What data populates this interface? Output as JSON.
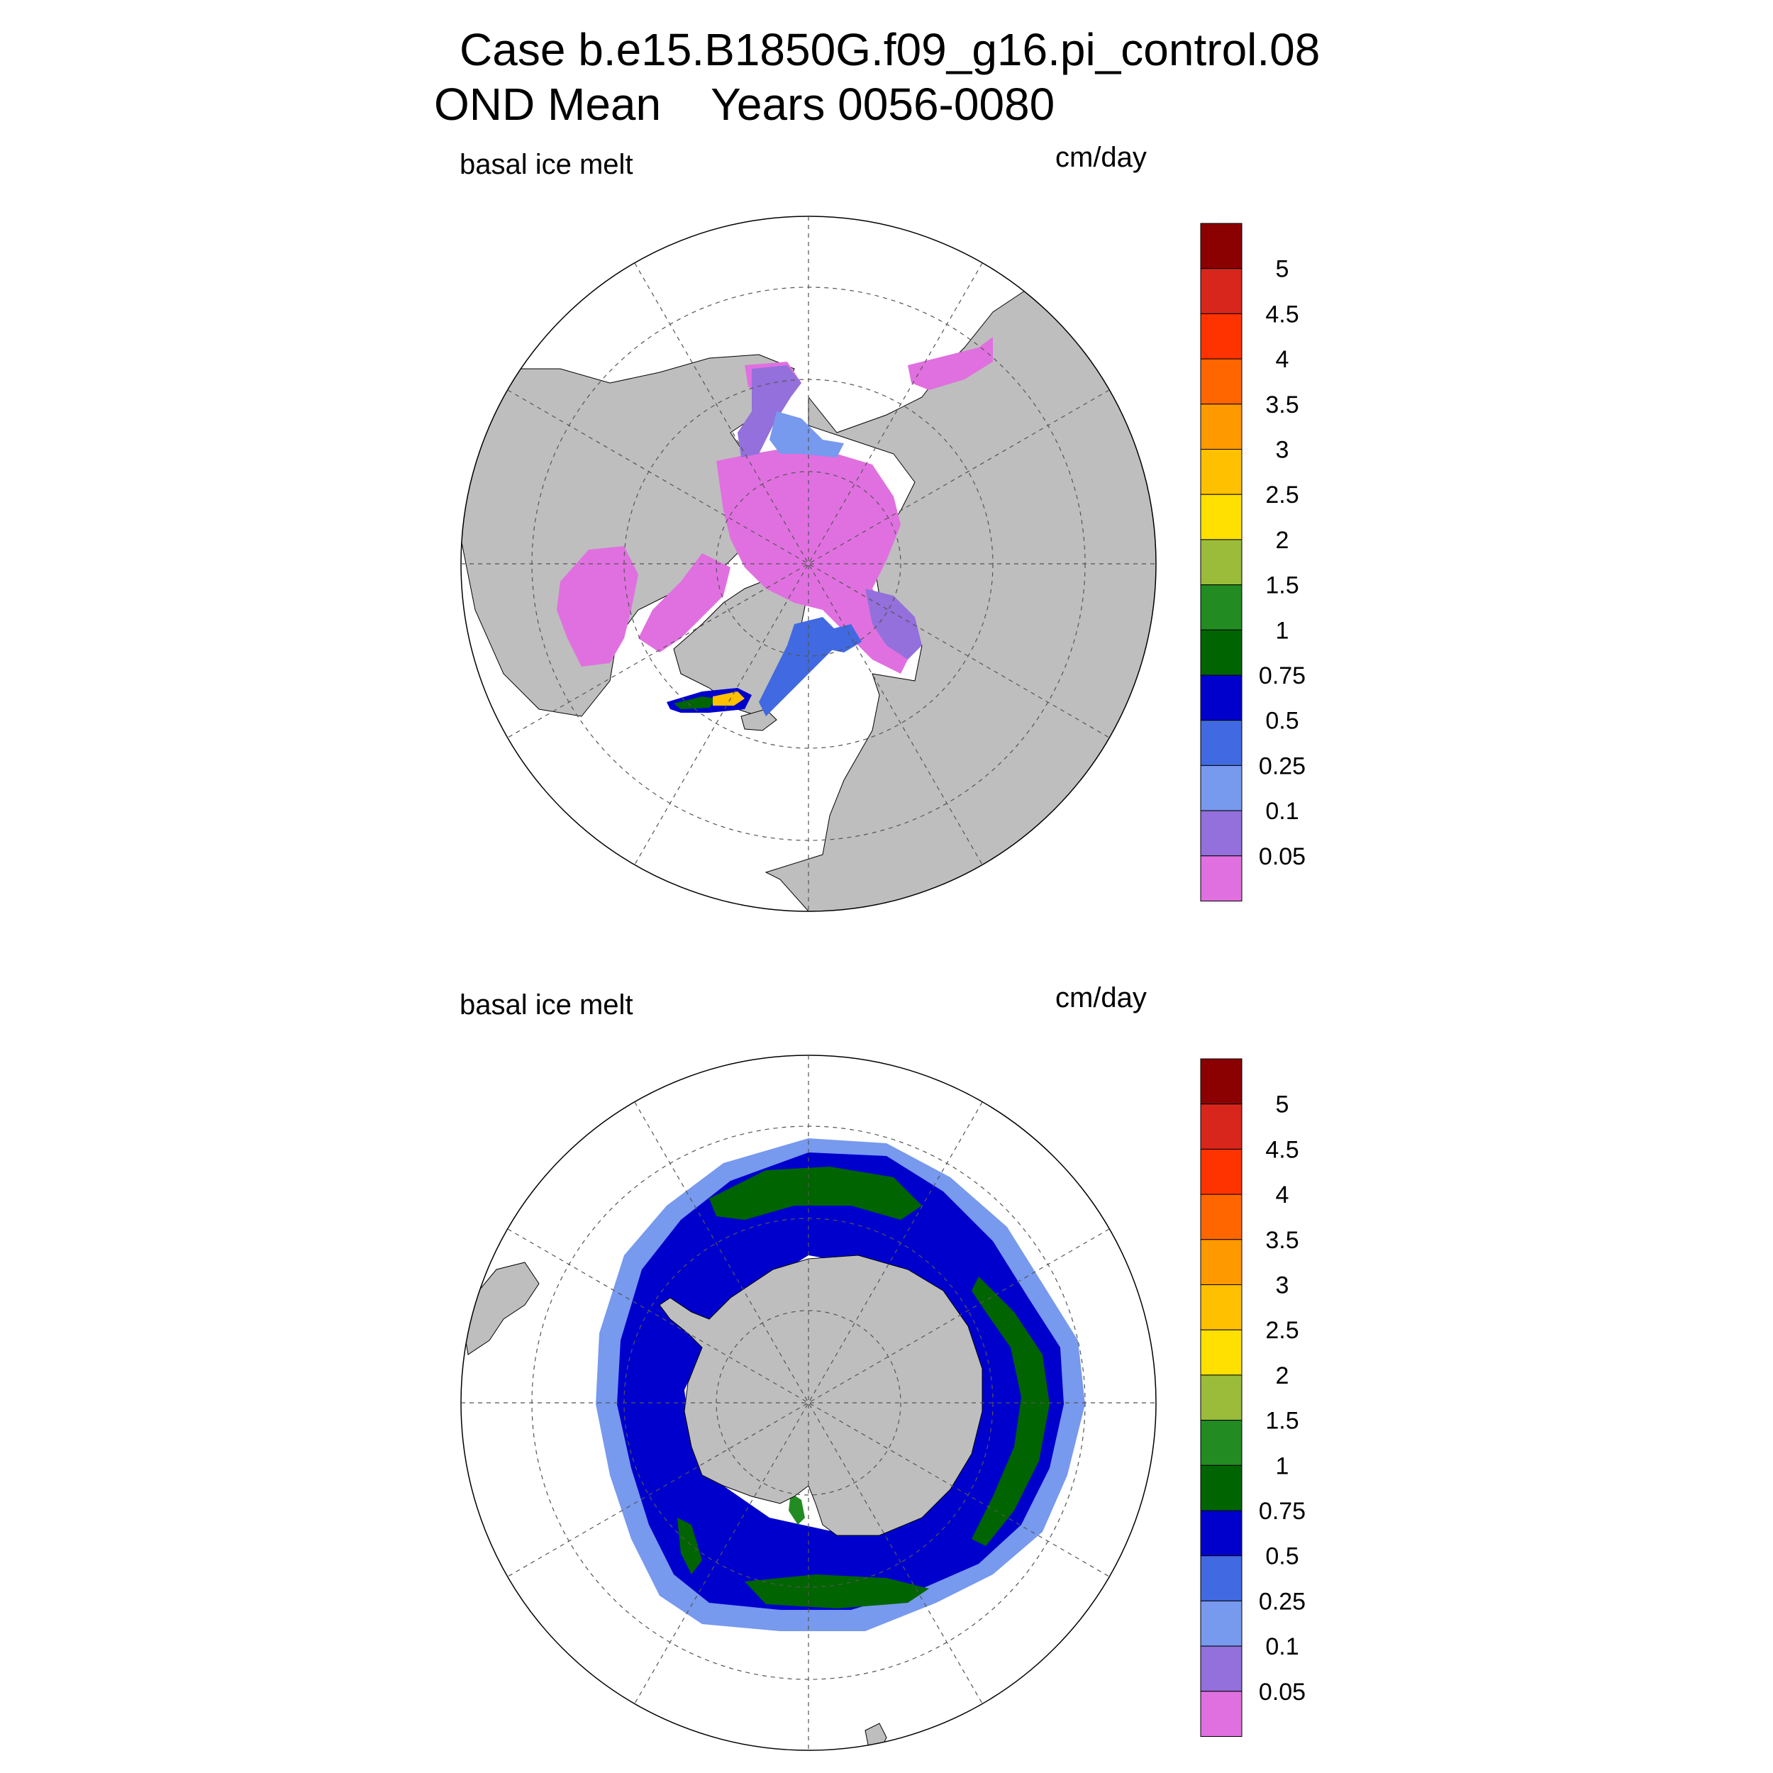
{
  "figure": {
    "title_line1": "Case b.e15.B1850G.f09_g16.pi_control.08",
    "title_line2": "OND Mean    Years 0056-0080"
  },
  "panels": [
    {
      "id": "north",
      "left_label": "basal ice melt",
      "right_label": "cm/day"
    },
    {
      "id": "south",
      "left_label": "basal ice melt",
      "right_label": "cm/day"
    }
  ],
  "colorbar": {
    "labels": [
      "5",
      "4.5",
      "4",
      "3.5",
      "3",
      "2.5",
      "2",
      "1.5",
      "1",
      "0.75",
      "0.5",
      "0.25",
      "0.1",
      "0.05"
    ],
    "colors_top_to_bottom": [
      "#8b0000",
      "#d9261c",
      "#ff3300",
      "#ff6600",
      "#ff9900",
      "#ffc000",
      "#ffe000",
      "#9abc3a",
      "#228b22",
      "#006400",
      "#0000cd",
      "#4169e1",
      "#7799ee",
      "#9370db",
      "#e070e0"
    ]
  },
  "land_color": "#bebebe",
  "ocean_color": "#ffffff"
}
